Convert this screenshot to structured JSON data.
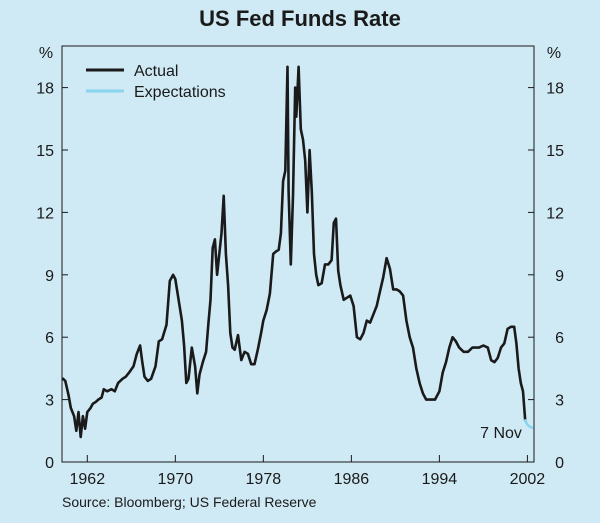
{
  "title": "US Fed Funds Rate",
  "source": "Source: Bloomberg; US Federal Reserve",
  "colors": {
    "background": "#cfeaf5",
    "actual": "#1a1a1a",
    "expectations": "#8ad4ee",
    "text": "#1a1a1a"
  },
  "chart_data": {
    "type": "line",
    "title": "US Fed Funds Rate",
    "ylabel": "%",
    "ylabel_right": "%",
    "xlim": [
      1959.7,
      2002.6
    ],
    "ylim": [
      0,
      20
    ],
    "yticks": [
      0,
      3,
      6,
      9,
      12,
      15,
      18
    ],
    "xticks": [
      1962,
      1970,
      1978,
      1986,
      1994,
      2002
    ],
    "xtick_labels": [
      "1962",
      "1970",
      "1978",
      "1986",
      "1994",
      "2002"
    ],
    "grid": false,
    "legend": {
      "position": "top-left",
      "entries": [
        "Actual",
        "Expectations"
      ]
    },
    "annotation": {
      "text": "7 Nov",
      "x": 1999.6,
      "y": 1.1
    },
    "series": [
      {
        "name": "Actual",
        "x": [
          1959.8,
          1960.0,
          1960.3,
          1960.5,
          1960.8,
          1961.0,
          1961.2,
          1961.4,
          1961.6,
          1961.8,
          1962.0,
          1962.3,
          1962.5,
          1962.8,
          1963.0,
          1963.3,
          1963.5,
          1963.8,
          1964.2,
          1964.5,
          1964.8,
          1965.2,
          1965.5,
          1965.8,
          1966.2,
          1966.5,
          1966.8,
          1967.0,
          1967.2,
          1967.5,
          1967.8,
          1968.2,
          1968.5,
          1968.8,
          1969.2,
          1969.5,
          1969.8,
          1970.0,
          1970.3,
          1970.6,
          1970.8,
          1971.0,
          1971.2,
          1971.5,
          1971.8,
          1972.0,
          1972.2,
          1972.5,
          1972.8,
          1973.0,
          1973.2,
          1973.4,
          1973.6,
          1973.8,
          1974.0,
          1974.2,
          1974.4,
          1974.6,
          1974.8,
          1975.0,
          1975.2,
          1975.4,
          1975.7,
          1976.0,
          1976.3,
          1976.6,
          1976.9,
          1977.2,
          1977.5,
          1977.8,
          1978.0,
          1978.3,
          1978.6,
          1978.9,
          1979.1,
          1979.4,
          1979.6,
          1979.8,
          1980.0,
          1980.2,
          1980.3,
          1980.5,
          1980.7,
          1980.9,
          1981.0,
          1981.2,
          1981.4,
          1981.6,
          1981.8,
          1982.0,
          1982.2,
          1982.4,
          1982.6,
          1982.8,
          1983.0,
          1983.3,
          1983.6,
          1983.9,
          1984.2,
          1984.4,
          1984.6,
          1984.8,
          1985.0,
          1985.3,
          1985.6,
          1985.9,
          1986.2,
          1986.5,
          1986.8,
          1987.1,
          1987.4,
          1987.7,
          1988.0,
          1988.3,
          1988.6,
          1988.9,
          1989.2,
          1989.5,
          1989.8,
          1990.1,
          1990.4,
          1990.7,
          1991.0,
          1991.3,
          1991.6,
          1991.9,
          1992.2,
          1992.5,
          1992.8,
          1993.2,
          1993.6,
          1994.0,
          1994.3,
          1994.6,
          1994.9,
          1995.2,
          1995.5,
          1995.8,
          1996.2,
          1996.6,
          1997.0,
          1997.3,
          1997.6,
          1998.0,
          1998.4,
          1998.7,
          1999.0,
          1999.3,
          1999.6,
          1999.9,
          2000.2,
          2000.5,
          2000.8,
          2001.0,
          2001.2,
          2001.4,
          2001.6,
          2001.8
        ],
        "values": [
          4.0,
          3.9,
          3.2,
          2.6,
          2.2,
          1.5,
          2.4,
          1.2,
          2.2,
          1.6,
          2.4,
          2.6,
          2.8,
          2.9,
          3.0,
          3.1,
          3.5,
          3.4,
          3.5,
          3.4,
          3.8,
          4.0,
          4.1,
          4.3,
          4.6,
          5.2,
          5.6,
          4.8,
          4.1,
          3.9,
          4.0,
          4.6,
          5.8,
          5.9,
          6.6,
          8.7,
          9.0,
          8.8,
          7.8,
          6.8,
          5.6,
          3.8,
          4.0,
          5.5,
          4.6,
          3.3,
          4.2,
          4.8,
          5.3,
          6.6,
          7.8,
          10.3,
          10.7,
          9.0,
          10.0,
          11.0,
          12.8,
          10.0,
          8.5,
          6.2,
          5.5,
          5.4,
          6.1,
          4.9,
          5.3,
          5.2,
          4.7,
          4.7,
          5.4,
          6.2,
          6.8,
          7.3,
          8.1,
          10.0,
          10.1,
          10.2,
          11.0,
          13.5,
          14.0,
          19.0,
          13.0,
          9.5,
          12.8,
          18.0,
          16.6,
          19.0,
          16.0,
          15.5,
          14.5,
          12.0,
          15.0,
          13.0,
          10.0,
          9.0,
          8.5,
          8.6,
          9.5,
          9.5,
          9.7,
          11.5,
          11.7,
          9.2,
          8.5,
          7.8,
          7.9,
          8.0,
          7.5,
          6.0,
          5.9,
          6.2,
          6.8,
          6.7,
          7.1,
          7.5,
          8.2,
          8.9,
          9.8,
          9.3,
          8.3,
          8.3,
          8.2,
          8.0,
          6.8,
          6.0,
          5.5,
          4.5,
          3.8,
          3.3,
          3.0,
          3.0,
          3.0,
          3.4,
          4.3,
          4.8,
          5.5,
          6.0,
          5.8,
          5.5,
          5.3,
          5.3,
          5.5,
          5.5,
          5.5,
          5.6,
          5.5,
          4.9,
          4.8,
          5.0,
          5.5,
          5.7,
          6.4,
          6.5,
          6.5,
          5.7,
          4.5,
          3.8,
          3.4,
          2.0
        ]
      },
      {
        "name": "Expectations",
        "x": [
          2001.8,
          2002.0,
          2002.2,
          2002.45
        ],
        "values": [
          2.0,
          1.8,
          1.7,
          1.65
        ]
      }
    ]
  }
}
